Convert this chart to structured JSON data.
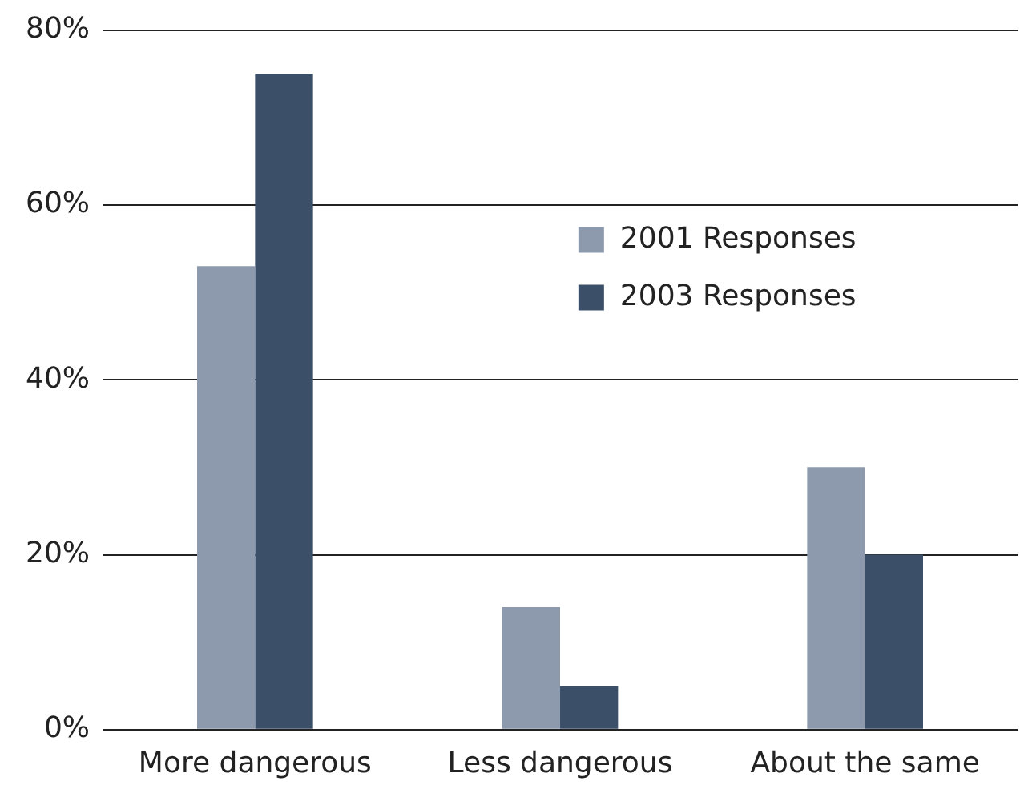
{
  "chart_data": {
    "type": "bar",
    "categories": [
      "More dangerous",
      "Less dangerous",
      "About the same"
    ],
    "series": [
      {
        "name": "2001 Responses",
        "color": "#8d9aae",
        "values": [
          53,
          14,
          30
        ]
      },
      {
        "name": "2003 Responses",
        "color": "#3b5068",
        "values": [
          75,
          5,
          20
        ]
      }
    ],
    "ylim": [
      0,
      80
    ],
    "yticks": [
      {
        "value": 0,
        "label": "0%"
      },
      {
        "value": 20,
        "label": "20%"
      },
      {
        "value": 40,
        "label": "40%"
      },
      {
        "value": 60,
        "label": "60%"
      },
      {
        "value": 80,
        "label": "80%"
      }
    ],
    "grid": "y",
    "legend": "right"
  }
}
